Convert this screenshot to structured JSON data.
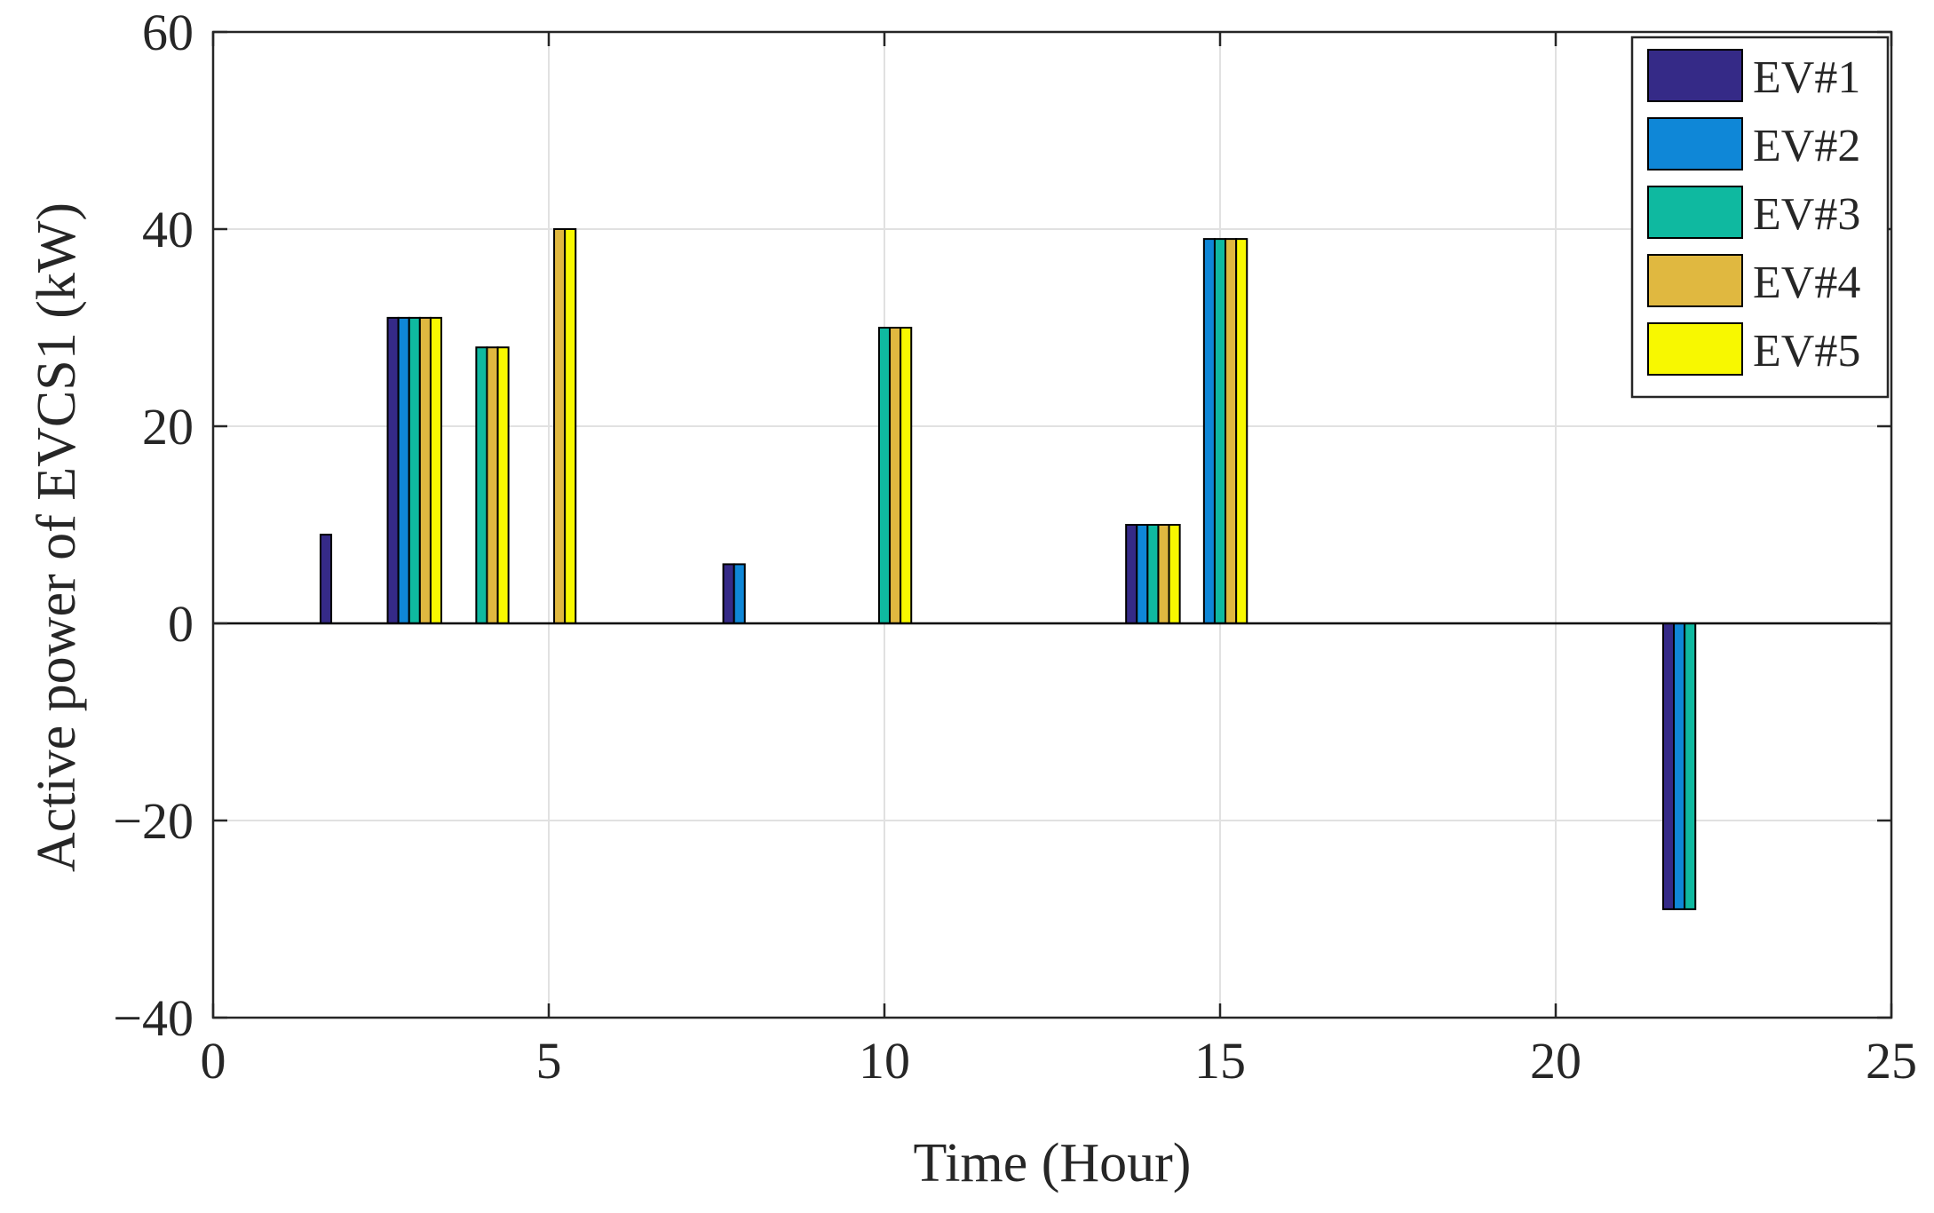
{
  "chart_data": {
    "type": "bar",
    "title": "",
    "xlabel": "Time (Hour)",
    "ylabel": "Active power of EVCS1 (kW)",
    "xlim": [
      0,
      25
    ],
    "ylim": [
      -40,
      60
    ],
    "xticks": [
      0,
      5,
      10,
      15,
      20,
      25
    ],
    "yticks": [
      -40,
      -20,
      0,
      20,
      40,
      60
    ],
    "xtick_labels": [
      "0",
      "5",
      "10",
      "15",
      "20",
      "25"
    ],
    "ytick_labels": [
      "−40",
      "−20",
      "0",
      "20",
      "40",
      "60"
    ],
    "grid": true,
    "legend_position": "top-right",
    "categories": [
      1,
      2,
      3,
      4,
      5,
      6,
      7,
      8,
      9,
      10,
      11,
      12,
      13,
      14,
      15,
      16,
      17,
      18,
      19,
      20,
      21,
      22,
      23,
      24
    ],
    "series": [
      {
        "name": "EV#1",
        "color": "#352A87",
        "values": [
          0,
          9,
          31,
          0,
          0,
          0,
          0,
          6,
          0,
          0,
          0,
          0,
          0,
          10,
          0,
          0,
          0,
          0,
          0,
          0,
          0,
          -29,
          0,
          0
        ]
      },
      {
        "name": "EV#2",
        "color": "#0F87D7",
        "values": [
          0,
          0,
          31,
          0,
          0,
          0,
          0,
          6,
          0,
          0,
          0,
          0,
          0,
          10,
          39,
          0,
          0,
          0,
          0,
          0,
          0,
          -29,
          0,
          0
        ]
      },
      {
        "name": "EV#3",
        "color": "#0FB9A0",
        "values": [
          0,
          0,
          31,
          28,
          0,
          0,
          0,
          0,
          0,
          30,
          0,
          0,
          0,
          10,
          39,
          0,
          0,
          0,
          0,
          0,
          0,
          -29,
          0,
          0
        ]
      },
      {
        "name": "EV#4",
        "color": "#E0B840",
        "values": [
          0,
          0,
          31,
          28,
          40,
          0,
          0,
          0,
          0,
          30,
          0,
          0,
          0,
          10,
          39,
          0,
          0,
          0,
          0,
          0,
          0,
          0,
          0,
          0
        ]
      },
      {
        "name": "EV#5",
        "color": "#F8F800",
        "values": [
          0,
          0,
          31,
          28,
          40,
          0,
          0,
          0,
          0,
          30,
          0,
          0,
          0,
          10,
          39,
          0,
          0,
          0,
          0,
          0,
          0,
          0,
          0,
          0
        ]
      }
    ]
  }
}
